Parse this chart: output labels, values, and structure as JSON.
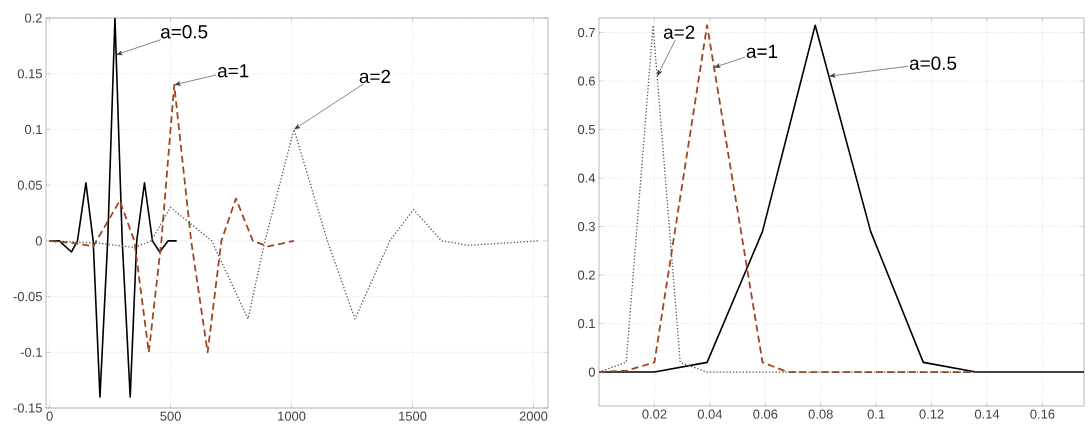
{
  "chart_data": [
    {
      "type": "line",
      "xlim": [
        -15,
        2060
      ],
      "ylim": [
        -0.15,
        0.2
      ],
      "xticks": [
        0,
        500,
        1000,
        1500,
        2000
      ],
      "yticks": [
        -0.15,
        -0.1,
        -0.05,
        0,
        0.05,
        0.1,
        0.15,
        0.2
      ],
      "grid": true,
      "marker": "none",
      "series": [
        {
          "color": "#000000",
          "line_style": "solid",
          "x": [
            0,
            40,
            90,
            115,
            150,
            180,
            208,
            240,
            270,
            300,
            333,
            360,
            392,
            425,
            455,
            490,
            525
          ],
          "values": [
            0,
            0,
            -0.01,
            0,
            0.052,
            0,
            -0.14,
            0,
            0.2,
            0,
            -0.14,
            0,
            0.052,
            0,
            -0.01,
            0,
            0
          ]
        },
        {
          "color": "#a0461e",
          "line_style": "dashed",
          "x": [
            0,
            100,
            180,
            290,
            350,
            410,
            462,
            515,
            585,
            653,
            710,
            770,
            840,
            903,
            1010
          ],
          "values": [
            0,
            -0.002,
            -0.005,
            0.036,
            0,
            -0.1,
            0,
            0.14,
            0,
            -0.1,
            0,
            0.038,
            0,
            -0.005,
            0
          ]
        },
        {
          "color": "#555555",
          "line_style": "dotted",
          "x": [
            0,
            200,
            350,
            420,
            500,
            670,
            820,
            890,
            1010,
            1148,
            1262,
            1406,
            1504,
            1620,
            1734,
            2020
          ],
          "values": [
            0,
            -0.002,
            -0.006,
            0,
            0.03,
            0,
            -0.07,
            0,
            0.1,
            0,
            -0.07,
            0,
            0.028,
            0,
            -0.004,
            0
          ]
        }
      ],
      "annotations": [
        {
          "text": "a=0.5",
          "x": 275,
          "y": 0.167
        },
        {
          "text": "a=1",
          "x": 515,
          "y": 0.14
        },
        {
          "text": "a=2",
          "x": 1010,
          "y": 0.1
        }
      ]
    },
    {
      "type": "line",
      "xlim": [
        0,
        0.175
      ],
      "ylim": [
        -0.07,
        0.73
      ],
      "xticks": [
        0.02,
        0.04,
        0.06,
        0.08,
        0.1,
        0.12,
        0.14,
        0.16
      ],
      "yticks": [
        0,
        0.1,
        0.2,
        0.3,
        0.4,
        0.5,
        0.6,
        0.7
      ],
      "grid": true,
      "marker": "none",
      "series": [
        {
          "color": "#000000",
          "line_style": "solid",
          "x": [
            0,
            0.02,
            0.039,
            0.059,
            0.078,
            0.098,
            0.117,
            0.136,
            0.175
          ],
          "values": [
            0,
            0,
            0.02,
            0.29,
            0.715,
            0.29,
            0.02,
            0,
            0
          ]
        },
        {
          "color": "#a0461e",
          "line_style": "dashed",
          "x": [
            0,
            0.01,
            0.02,
            0.039,
            0.059,
            0.068,
            0.136
          ],
          "values": [
            0,
            0.003,
            0.02,
            0.715,
            0.02,
            0,
            0
          ]
        },
        {
          "color": "#555555",
          "line_style": "dotted",
          "x": [
            0,
            0.0098,
            0.0195,
            0.0293,
            0.039,
            0.175
          ],
          "values": [
            0,
            0.02,
            0.715,
            0.02,
            0,
            0
          ]
        }
      ],
      "annotations": [
        {
          "text": "a=2",
          "x": 0.021,
          "y": 0.61
        },
        {
          "text": "a=1",
          "x": 0.0415,
          "y": 0.628
        },
        {
          "text": "a=0.5",
          "x": 0.083,
          "y": 0.61
        }
      ]
    }
  ]
}
